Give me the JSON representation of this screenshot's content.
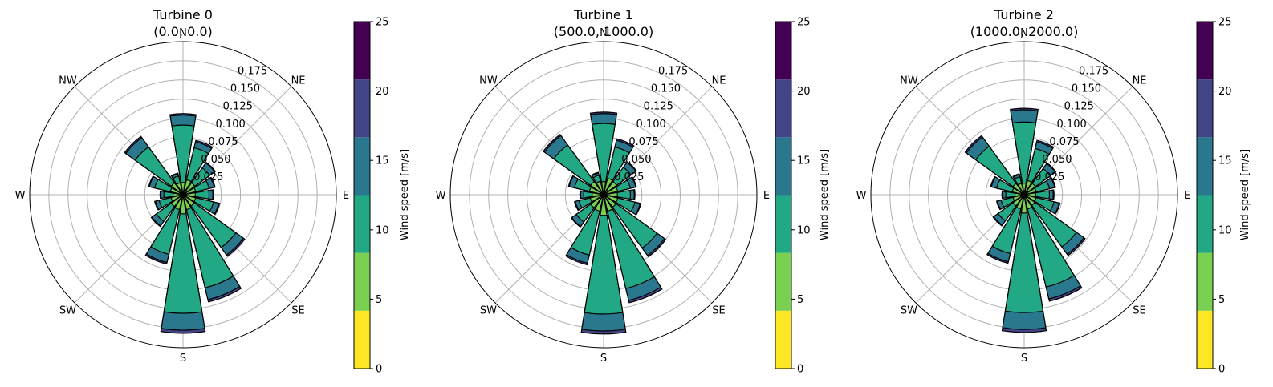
{
  "chart_data": [
    {
      "type": "windrose",
      "title": "Turbine 0",
      "subtitle": "(0.0, 0.0)",
      "direction_labels": [
        "N",
        "NE",
        "E",
        "SE",
        "S",
        "SW",
        "W",
        "NW"
      ],
      "radial_ticks": [
        "0.025",
        "0.050",
        "0.075",
        "0.100",
        "0.125",
        "0.150",
        "0.175"
      ],
      "radial_tick_values": [
        0.025,
        0.05,
        0.075,
        0.1,
        0.125,
        0.15,
        0.175
      ],
      "rlim": [
        0,
        0.2
      ],
      "sectors_deg": [
        0,
        22.5,
        45,
        67.5,
        90,
        112.5,
        135,
        157.5,
        180,
        202.5,
        225,
        247.5,
        270,
        292.5,
        315,
        337.5
      ],
      "bins": [
        "0-4",
        "4-8",
        "8-12",
        "12-16",
        "16-20",
        "20-25"
      ],
      "cumulative": [
        [
          0.003,
          0.016,
          0.091,
          0.104,
          0.106,
          0.106
        ],
        [
          0.003,
          0.02,
          0.063,
          0.071,
          0.073,
          0.073
        ],
        [
          0.003,
          0.019,
          0.043,
          0.051,
          0.052,
          0.052
        ],
        [
          0.003,
          0.017,
          0.035,
          0.042,
          0.043,
          0.043
        ],
        [
          0.003,
          0.016,
          0.034,
          0.039,
          0.04,
          0.04
        ],
        [
          0.003,
          0.017,
          0.041,
          0.048,
          0.049,
          0.049
        ],
        [
          0.003,
          0.018,
          0.085,
          0.097,
          0.099,
          0.099
        ],
        [
          0.003,
          0.02,
          0.125,
          0.141,
          0.144,
          0.144
        ],
        [
          0.003,
          0.025,
          0.155,
          0.177,
          0.181,
          0.181
        ],
        [
          0.003,
          0.02,
          0.08,
          0.091,
          0.093,
          0.093
        ],
        [
          0.003,
          0.019,
          0.043,
          0.05,
          0.051,
          0.051
        ],
        [
          0.003,
          0.016,
          0.032,
          0.037,
          0.038,
          0.038
        ],
        [
          0.003,
          0.013,
          0.025,
          0.029,
          0.03,
          0.03
        ],
        [
          0.003,
          0.017,
          0.038,
          0.045,
          0.046,
          0.046
        ],
        [
          0.003,
          0.019,
          0.077,
          0.092,
          0.094,
          0.094
        ],
        [
          0.003,
          0.016,
          0.025,
          0.028,
          0.029,
          0.029
        ]
      ],
      "colorbar": {
        "label": "Wind speed [m/s]",
        "ticks": [
          "0",
          "5",
          "10",
          "15",
          "20",
          "25"
        ],
        "range": [
          0,
          25
        ]
      }
    },
    {
      "type": "windrose",
      "title": "Turbine 1",
      "subtitle": "(500.0, 1000.0)",
      "direction_labels": [
        "N",
        "NE",
        "E",
        "SE",
        "S",
        "SW",
        "W",
        "NW"
      ],
      "radial_ticks": [
        "0.025",
        "0.050",
        "0.075",
        "0.100",
        "0.125",
        "0.150",
        "0.175"
      ],
      "radial_tick_values": [
        0.025,
        0.05,
        0.075,
        0.1,
        0.125,
        0.15,
        0.175
      ],
      "rlim": [
        0,
        0.2
      ],
      "sectors_deg": [
        0,
        22.5,
        45,
        67.5,
        90,
        112.5,
        135,
        157.5,
        180,
        202.5,
        225,
        247.5,
        270,
        292.5,
        315,
        337.5
      ],
      "bins": [
        "0-4",
        "4-8",
        "8-12",
        "12-16",
        "16-20",
        "20-25"
      ],
      "cumulative": [
        [
          0.003,
          0.017,
          0.093,
          0.106,
          0.108,
          0.108
        ],
        [
          0.003,
          0.022,
          0.064,
          0.073,
          0.075,
          0.075
        ],
        [
          0.003,
          0.021,
          0.044,
          0.052,
          0.053,
          0.053
        ],
        [
          0.003,
          0.019,
          0.036,
          0.043,
          0.044,
          0.044
        ],
        [
          0.003,
          0.018,
          0.035,
          0.04,
          0.041,
          0.041
        ],
        [
          0.003,
          0.019,
          0.042,
          0.049,
          0.05,
          0.05
        ],
        [
          0.003,
          0.02,
          0.086,
          0.098,
          0.1,
          0.1
        ],
        [
          0.003,
          0.022,
          0.126,
          0.142,
          0.145,
          0.145
        ],
        [
          0.003,
          0.027,
          0.156,
          0.178,
          0.182,
          0.182
        ],
        [
          0.003,
          0.022,
          0.081,
          0.092,
          0.094,
          0.094
        ],
        [
          0.003,
          0.021,
          0.044,
          0.051,
          0.052,
          0.052
        ],
        [
          0.003,
          0.018,
          0.033,
          0.038,
          0.039,
          0.039
        ],
        [
          0.003,
          0.015,
          0.026,
          0.03,
          0.031,
          0.031
        ],
        [
          0.003,
          0.019,
          0.039,
          0.046,
          0.047,
          0.047
        ],
        [
          0.003,
          0.021,
          0.08,
          0.095,
          0.097,
          0.097
        ],
        [
          0.003,
          0.018,
          0.026,
          0.029,
          0.03,
          0.03
        ]
      ],
      "colorbar": {
        "label": "Wind speed [m/s]",
        "ticks": [
          "0",
          "5",
          "10",
          "15",
          "20",
          "25"
        ],
        "range": [
          0,
          25
        ]
      }
    },
    {
      "type": "windrose",
      "title": "Turbine 2",
      "subtitle": "(1000.0, 2000.0)",
      "direction_labels": [
        "N",
        "NE",
        "E",
        "SE",
        "S",
        "SW",
        "W",
        "NW"
      ],
      "radial_ticks": [
        "0.025",
        "0.050",
        "0.075",
        "0.100",
        "0.125",
        "0.150",
        "0.175"
      ],
      "radial_tick_values": [
        0.025,
        0.05,
        0.075,
        0.1,
        0.125,
        0.15,
        0.175
      ],
      "rlim": [
        0,
        0.2
      ],
      "sectors_deg": [
        0,
        22.5,
        45,
        67.5,
        90,
        112.5,
        135,
        157.5,
        180,
        202.5,
        225,
        247.5,
        270,
        292.5,
        315,
        337.5
      ],
      "bins": [
        "0-4",
        "4-8",
        "8-12",
        "12-16",
        "16-20",
        "20-25"
      ],
      "cumulative": [
        [
          0.003,
          0.015,
          0.095,
          0.111,
          0.113,
          0.113
        ],
        [
          0.003,
          0.019,
          0.062,
          0.071,
          0.073,
          0.073
        ],
        [
          0.003,
          0.018,
          0.042,
          0.05,
          0.051,
          0.051
        ],
        [
          0.003,
          0.016,
          0.034,
          0.041,
          0.042,
          0.042
        ],
        [
          0.003,
          0.015,
          0.033,
          0.038,
          0.039,
          0.039
        ],
        [
          0.003,
          0.016,
          0.04,
          0.047,
          0.048,
          0.048
        ],
        [
          0.003,
          0.017,
          0.084,
          0.096,
          0.098,
          0.098
        ],
        [
          0.003,
          0.019,
          0.124,
          0.14,
          0.143,
          0.143
        ],
        [
          0.003,
          0.024,
          0.154,
          0.176,
          0.18,
          0.18
        ],
        [
          0.003,
          0.019,
          0.079,
          0.09,
          0.092,
          0.092
        ],
        [
          0.003,
          0.018,
          0.042,
          0.049,
          0.05,
          0.05
        ],
        [
          0.003,
          0.015,
          0.031,
          0.036,
          0.037,
          0.037
        ],
        [
          0.003,
          0.012,
          0.024,
          0.028,
          0.029,
          0.029
        ],
        [
          0.003,
          0.016,
          0.037,
          0.044,
          0.045,
          0.045
        ],
        [
          0.003,
          0.018,
          0.078,
          0.093,
          0.095,
          0.095
        ],
        [
          0.003,
          0.015,
          0.024,
          0.027,
          0.028,
          0.028
        ]
      ],
      "colorbar": {
        "label": "Wind speed [m/s]",
        "ticks": [
          "0",
          "5",
          "10",
          "15",
          "20",
          "25"
        ],
        "range": [
          0,
          25
        ]
      }
    }
  ],
  "colors": {
    "bins": [
      "#fde725",
      "#7ad151",
      "#22a884",
      "#2a788e",
      "#414487",
      "#440154"
    ],
    "grid": "#b0b0b0",
    "axis": "#000000"
  }
}
